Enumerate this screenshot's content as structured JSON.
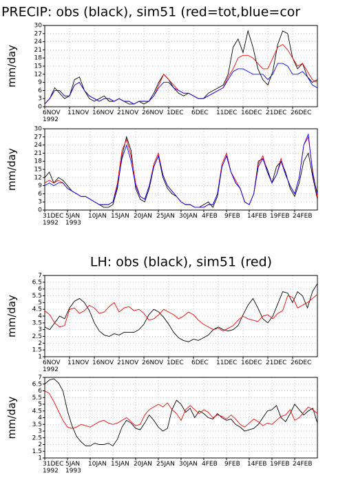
{
  "chart_data": [
    {
      "type": "line",
      "title": "PRECIP: obs (black), sim51 (red=tot,blue=cor",
      "ylabel": "mm/day",
      "x": [
        0,
        1,
        2,
        3,
        4,
        5,
        6,
        7,
        8,
        9,
        10,
        11,
        12,
        13,
        14,
        15,
        16,
        17,
        18,
        19,
        20,
        21,
        22,
        23,
        24,
        25,
        26,
        27,
        28,
        29,
        30,
        31,
        32,
        33,
        34,
        35,
        36,
        37,
        38,
        39,
        40,
        41,
        42,
        43,
        44,
        45,
        46,
        47,
        48,
        49,
        50,
        51,
        52,
        53,
        54,
        55
      ],
      "xlim": [
        0,
        55
      ],
      "xticks": [
        {
          "value": 0,
          "label": "6NOV"
        },
        {
          "value": 5,
          "label": "11NOV"
        },
        {
          "value": 10,
          "label": "16NOV"
        },
        {
          "value": 15,
          "label": "21NOV"
        },
        {
          "value": 20,
          "label": "26NOV"
        },
        {
          "value": 25,
          "label": "1DEC"
        },
        {
          "value": 30,
          "label": "6DEC"
        },
        {
          "value": 35,
          "label": "11DEC"
        },
        {
          "value": 40,
          "label": "16DEC"
        },
        {
          "value": 45,
          "label": "21DEC"
        },
        {
          "value": 50,
          "label": "26DEC"
        }
      ],
      "year_labels": [
        {
          "value": 0,
          "label": "1992"
        }
      ],
      "ylim": [
        0,
        30
      ],
      "yticks": [
        0,
        3,
        6,
        9,
        12,
        15,
        18,
        21,
        24,
        27,
        30
      ],
      "grid": true,
      "series": [
        {
          "color": "#000000",
          "values": [
            1,
            3,
            7,
            5,
            3,
            4,
            10,
            11,
            6,
            3,
            2,
            3,
            4,
            2,
            2,
            3,
            2,
            1,
            1,
            2,
            1,
            2,
            5,
            9,
            12,
            10,
            7,
            5,
            4,
            5,
            4,
            3,
            3,
            5,
            6,
            7,
            8,
            12,
            22,
            25,
            20,
            28,
            22,
            14,
            10,
            8,
            13,
            23,
            28,
            27,
            18,
            14,
            16,
            11,
            9,
            10
          ]
        },
        {
          "color": "#ff0000",
          "values": [
            1,
            3,
            6,
            6,
            4,
            4,
            8,
            9,
            6,
            4,
            3,
            2,
            3,
            3,
            2,
            3,
            2,
            2,
            1,
            2,
            2,
            2,
            4,
            8,
            12,
            10,
            8,
            6,
            5,
            5,
            4,
            3,
            3,
            4,
            5,
            6,
            7,
            11,
            14,
            18,
            19,
            19,
            18,
            16,
            14,
            14,
            18,
            22,
            23,
            21,
            18,
            15,
            16,
            13,
            10,
            9
          ]
        },
        {
          "color": "#0000ff",
          "values": [
            1,
            3,
            6,
            6,
            4,
            4,
            8,
            9,
            6,
            4,
            3,
            2,
            3,
            3,
            2,
            3,
            2,
            2,
            1,
            2,
            2,
            2,
            4,
            7,
            9,
            9,
            7,
            6,
            5,
            5,
            4,
            3,
            3,
            4,
            5,
            6,
            7,
            10,
            13,
            14,
            14,
            13,
            12,
            12,
            12,
            10,
            12,
            16,
            16,
            15,
            12,
            12,
            13,
            11,
            8,
            7
          ]
        }
      ]
    },
    {
      "type": "line",
      "ylabel": "mm/day",
      "x": [
        0,
        1,
        2,
        3,
        4,
        5,
        6,
        7,
        8,
        9,
        10,
        11,
        12,
        13,
        14,
        15,
        16,
        17,
        18,
        19,
        20,
        21,
        22,
        23,
        24,
        25,
        26,
        27,
        28,
        29,
        30,
        31,
        32,
        33,
        34,
        35,
        36,
        37,
        38,
        39,
        40,
        41,
        42,
        43,
        44,
        45,
        46,
        47,
        48,
        49,
        50,
        51,
        52,
        53,
        54,
        55,
        56,
        57,
        58,
        59,
        60
      ],
      "xlim": [
        0,
        60
      ],
      "xticks": [
        {
          "value": 0,
          "label": "31DEC"
        },
        {
          "value": 5,
          "label": "5JAN"
        },
        {
          "value": 10,
          "label": "10JAN"
        },
        {
          "value": 15,
          "label": "15JAN"
        },
        {
          "value": 20,
          "label": "20JAN"
        },
        {
          "value": 25,
          "label": "25JAN"
        },
        {
          "value": 30,
          "label": "30JAN"
        },
        {
          "value": 35,
          "label": "4FEB"
        },
        {
          "value": 40,
          "label": "9FEB"
        },
        {
          "value": 45,
          "label": "14FEB"
        },
        {
          "value": 50,
          "label": "19FEB"
        },
        {
          "value": 55,
          "label": "24FEB"
        }
      ],
      "year_labels": [
        {
          "value": 0,
          "label": "1992"
        },
        {
          "value": 5,
          "label": "1993"
        }
      ],
      "ylim": [
        0,
        30
      ],
      "yticks": [
        0,
        3,
        6,
        9,
        12,
        15,
        18,
        21,
        24,
        27,
        30
      ],
      "grid": true,
      "series": [
        {
          "color": "#000000",
          "values": [
            12,
            14,
            10,
            12,
            11,
            9,
            7,
            6,
            5,
            5,
            4,
            3,
            2,
            1,
            1,
            2,
            8,
            20,
            27,
            22,
            8,
            4,
            3,
            8,
            16,
            20,
            12,
            8,
            6,
            5,
            3,
            2,
            2,
            1,
            1,
            2,
            3,
            1,
            5,
            16,
            20,
            14,
            10,
            8,
            3,
            2,
            6,
            18,
            19,
            15,
            10,
            16,
            18,
            14,
            8,
            5,
            10,
            18,
            21,
            12,
            4
          ]
        },
        {
          "color": "#ff0000",
          "values": [
            10,
            11,
            10,
            11,
            10,
            8,
            7,
            6,
            5,
            5,
            4,
            3,
            2,
            2,
            2,
            3,
            10,
            22,
            26,
            20,
            10,
            5,
            4,
            9,
            17,
            21,
            13,
            9,
            7,
            5,
            3,
            2,
            2,
            1,
            1,
            1,
            2,
            2,
            6,
            17,
            21,
            14,
            11,
            8,
            3,
            2,
            6,
            17,
            20,
            14,
            10,
            13,
            19,
            13,
            9,
            6,
            12,
            24,
            27,
            14,
            5
          ]
        },
        {
          "color": "#0000ff",
          "values": [
            9,
            10,
            9,
            10,
            10,
            8,
            7,
            6,
            5,
            5,
            4,
            3,
            2,
            2,
            2,
            3,
            9,
            19,
            24,
            18,
            9,
            5,
            4,
            9,
            16,
            20,
            13,
            9,
            7,
            5,
            3,
            2,
            2,
            1,
            1,
            1,
            2,
            2,
            6,
            16,
            20,
            14,
            10,
            8,
            3,
            2,
            6,
            16,
            19,
            14,
            10,
            13,
            18,
            13,
            9,
            6,
            12,
            24,
            28,
            13,
            6
          ]
        }
      ]
    },
    {
      "type": "line",
      "title": "LH: obs (black), sim51 (red)",
      "ylabel": "mm/day",
      "x": [
        0,
        1,
        2,
        3,
        4,
        5,
        6,
        7,
        8,
        9,
        10,
        11,
        12,
        13,
        14,
        15,
        16,
        17,
        18,
        19,
        20,
        21,
        22,
        23,
        24,
        25,
        26,
        27,
        28,
        29,
        30,
        31,
        32,
        33,
        34,
        35,
        36,
        37,
        38,
        39,
        40,
        41,
        42,
        43,
        44,
        45,
        46,
        47,
        48,
        49,
        50,
        51,
        52,
        53,
        54,
        55
      ],
      "xlim": [
        0,
        55
      ],
      "xticks": [
        {
          "value": 0,
          "label": "6NOV"
        },
        {
          "value": 5,
          "label": "11NOV"
        },
        {
          "value": 10,
          "label": "16NOV"
        },
        {
          "value": 15,
          "label": "21NOV"
        },
        {
          "value": 20,
          "label": "26NOV"
        },
        {
          "value": 25,
          "label": "1DEC"
        },
        {
          "value": 30,
          "label": "6DEC"
        },
        {
          "value": 35,
          "label": "11DEC"
        },
        {
          "value": 40,
          "label": "16DEC"
        },
        {
          "value": 45,
          "label": "21DEC"
        },
        {
          "value": 50,
          "label": "26DEC"
        }
      ],
      "year_labels": [
        {
          "value": 0,
          "label": "1992"
        }
      ],
      "ylim": [
        1,
        7
      ],
      "yticks": [
        1,
        1.5,
        2,
        2.5,
        3,
        3.5,
        4,
        4.5,
        5,
        5.5,
        6,
        6.5,
        7
      ],
      "grid": true,
      "series": [
        {
          "color": "#000000",
          "values": [
            3.2,
            3.0,
            3.5,
            4.0,
            3.8,
            4.6,
            5.1,
            5.3,
            5.0,
            4.4,
            3.5,
            2.9,
            2.6,
            2.5,
            2.7,
            2.6,
            2.8,
            2.8,
            2.8,
            3.0,
            3.4,
            4.1,
            4.5,
            4.3,
            3.9,
            3.4,
            2.8,
            2.4,
            2.2,
            2.1,
            2.3,
            2.2,
            2.4,
            2.6,
            3.0,
            3.2,
            3.0,
            2.9,
            3.0,
            3.3,
            4.1,
            4.8,
            5.3,
            4.6,
            3.8,
            3.5,
            4.0,
            4.9,
            5.8,
            5.7,
            5.0,
            5.8,
            5.5,
            4.6,
            5.8,
            6.4
          ]
        },
        {
          "color": "#ff0000",
          "values": [
            4.4,
            4.1,
            3.5,
            3.2,
            3.3,
            4.5,
            4.6,
            4.2,
            4.4,
            4.8,
            4.6,
            4.2,
            4.3,
            4.7,
            5.0,
            4.3,
            4.6,
            4.7,
            4.4,
            4.5,
            4.2,
            3.7,
            3.8,
            4.1,
            4.5,
            4.3,
            4.1,
            3.8,
            4.0,
            4.3,
            4.1,
            3.7,
            3.4,
            3.2,
            3.0,
            3.1,
            2.9,
            3.1,
            3.3,
            3.7,
            4.0,
            3.8,
            3.7,
            3.6,
            4.0,
            4.1,
            3.8,
            4.2,
            4.4,
            5.5,
            5.4,
            4.6,
            4.8,
            5.0,
            5.3,
            5.6
          ]
        }
      ]
    },
    {
      "type": "line",
      "ylabel": "mm/day",
      "x": [
        0,
        1,
        2,
        3,
        4,
        5,
        6,
        7,
        8,
        9,
        10,
        11,
        12,
        13,
        14,
        15,
        16,
        17,
        18,
        19,
        20,
        21,
        22,
        23,
        24,
        25,
        26,
        27,
        28,
        29,
        30,
        31,
        32,
        33,
        34,
        35,
        36,
        37,
        38,
        39,
        40,
        41,
        42,
        43,
        44,
        45,
        46,
        47,
        48,
        49,
        50,
        51,
        52,
        53,
        54,
        55,
        56,
        57,
        58,
        59,
        60
      ],
      "xlim": [
        0,
        60
      ],
      "xticks": [
        {
          "value": 0,
          "label": "31DEC"
        },
        {
          "value": 5,
          "label": "5JAN"
        },
        {
          "value": 10,
          "label": "10JAN"
        },
        {
          "value": 15,
          "label": "15JAN"
        },
        {
          "value": 20,
          "label": "20JAN"
        },
        {
          "value": 25,
          "label": "25JAN"
        },
        {
          "value": 30,
          "label": "30JAN"
        },
        {
          "value": 35,
          "label": "4FEB"
        },
        {
          "value": 40,
          "label": "9FEB"
        },
        {
          "value": 45,
          "label": "14FEB"
        },
        {
          "value": 50,
          "label": "19FEB"
        },
        {
          "value": 55,
          "label": "24FEB"
        }
      ],
      "year_labels": [
        {
          "value": 0,
          "label": "1992"
        },
        {
          "value": 5,
          "label": "1993"
        }
      ],
      "ylim": [
        1,
        7
      ],
      "yticks": [
        1,
        1.5,
        2,
        2.5,
        3,
        3.5,
        4,
        4.5,
        5,
        5.5,
        6,
        6.5,
        7
      ],
      "grid": true,
      "series": [
        {
          "color": "#000000",
          "values": [
            6.5,
            6.8,
            6.9,
            6.6,
            6.0,
            4.5,
            3.4,
            2.6,
            2.2,
            1.9,
            1.9,
            2.1,
            2.0,
            2.0,
            2.1,
            1.9,
            2.4,
            3.3,
            3.8,
            3.6,
            3.2,
            3.1,
            3.6,
            4.2,
            3.8,
            3.3,
            3.0,
            3.2,
            4.6,
            5.3,
            5.0,
            4.4,
            4.7,
            4.0,
            4.5,
            4.3,
            4.0,
            3.9,
            4.3,
            4.0,
            3.8,
            3.9,
            3.5,
            3.3,
            3.0,
            3.1,
            3.2,
            3.5,
            4.0,
            4.5,
            4.6,
            4.9,
            4.0,
            3.7,
            4.3,
            5.0,
            4.6,
            4.2,
            4.5,
            4.7,
            3.6
          ]
        },
        {
          "color": "#ff0000",
          "values": [
            6.0,
            5.8,
            5.2,
            4.5,
            3.8,
            3.3,
            3.2,
            3.3,
            3.5,
            3.4,
            3.3,
            3.5,
            3.7,
            3.8,
            3.6,
            3.5,
            3.6,
            3.8,
            4.0,
            3.7,
            3.4,
            3.5,
            4.2,
            4.6,
            4.8,
            5.0,
            4.8,
            5.1,
            4.6,
            4.3,
            3.8,
            4.6,
            4.9,
            4.6,
            4.3,
            4.6,
            4.4,
            4.0,
            4.2,
            4.1,
            3.9,
            4.2,
            3.9,
            3.5,
            3.3,
            3.6,
            3.9,
            3.7,
            3.4,
            3.6,
            3.5,
            3.8,
            4.1,
            4.2,
            4.6,
            3.8,
            4.0,
            4.4,
            4.8,
            4.6,
            4.3
          ]
        }
      ]
    }
  ]
}
